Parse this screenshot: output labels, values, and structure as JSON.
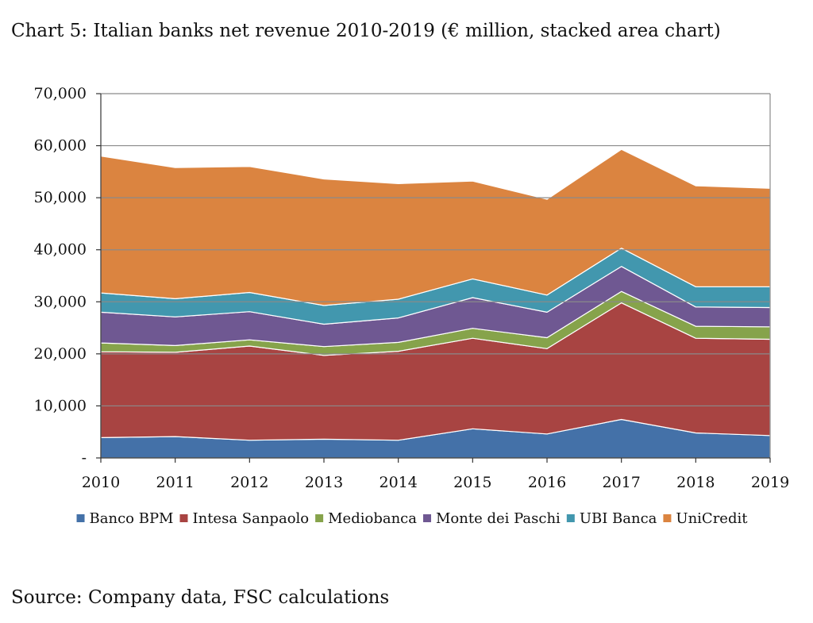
{
  "title": "Chart 5: Italian banks net revenue 2010-2019 (€ million, stacked area chart)",
  "source": "Source: Company data, FSC calculations",
  "chart_data": {
    "type": "area",
    "stacked": true,
    "x": [
      "2010",
      "2011",
      "2012",
      "2013",
      "2014",
      "2015",
      "2016",
      "2017",
      "2018",
      "2019"
    ],
    "ylim": [
      0,
      70000
    ],
    "yticks": [
      0,
      10000,
      20000,
      30000,
      40000,
      50000,
      60000,
      70000
    ],
    "ytick_labels": [
      "-",
      "10,000",
      "20,000",
      "30,000",
      "40,000",
      "50,000",
      "60,000",
      "70,000"
    ],
    "grid": "horizontal",
    "legend_position": "bottom",
    "series": [
      {
        "name": "Banco BPM",
        "color": "#4471a8",
        "values": [
          3900,
          4100,
          3400,
          3600,
          3400,
          5600,
          4600,
          7400,
          4800,
          4300
        ]
      },
      {
        "name": "Intesa Sanpaolo",
        "color": "#a84442",
        "values": [
          16500,
          16200,
          18100,
          16100,
          17100,
          17400,
          16400,
          22400,
          18200,
          18500
        ]
      },
      {
        "name": "Mediobanca",
        "color": "#86a34b",
        "values": [
          1700,
          1300,
          1200,
          1700,
          1700,
          1900,
          2100,
          2200,
          2300,
          2400
        ]
      },
      {
        "name": "Monte dei Paschi",
        "color": "#6f5892",
        "values": [
          5900,
          5500,
          5400,
          4300,
          4700,
          5900,
          4900,
          4800,
          3700,
          3700
        ]
      },
      {
        "name": "UBI Banca",
        "color": "#4297ae",
        "values": [
          3700,
          3500,
          3700,
          3600,
          3600,
          3600,
          3300,
          3500,
          3900,
          4000
        ]
      },
      {
        "name": "UniCredit",
        "color": "#db8440",
        "values": [
          26300,
          25200,
          24200,
          24300,
          22200,
          18800,
          18400,
          19000,
          19400,
          18900
        ]
      }
    ]
  }
}
